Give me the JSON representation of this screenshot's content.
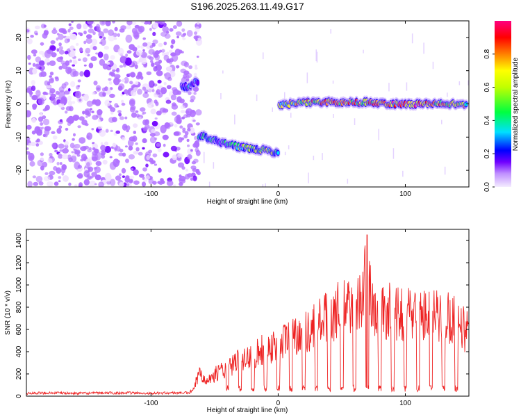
{
  "title": "S196.2025.263.11.49.G17",
  "chart_data": [
    {
      "type": "heatmap",
      "xlabel": "Height of straight line (km)",
      "ylabel": "Frequency (Hz)",
      "xlim": [
        -198,
        150
      ],
      "ylim": [
        -25,
        25
      ],
      "xticks": [
        -100,
        0,
        100
      ],
      "yticks": [
        -20,
        -10,
        0,
        10,
        20
      ],
      "colorbar": {
        "label": "Normalized spectral amplitude",
        "range": [
          0,
          1
        ],
        "ticks": [
          0.0,
          0.2,
          0.4,
          0.6,
          0.8
        ],
        "tick_labels": [
          "0.0",
          "0.2",
          "0.4",
          "0.6",
          "0.8"
        ],
        "colormap": [
          "#f0e0ff",
          "#b070ff",
          "#7000ff",
          "#0000ff",
          "#00e0ff",
          "#00ff40",
          "#c0ff00",
          "#ffff00",
          "#ff8000",
          "#ff0000",
          "#ff0080"
        ]
      },
      "ridge": [
        {
          "x": -76,
          "freq": 5.5,
          "amplitude": 0.25
        },
        {
          "x": -70,
          "freq": 5.0,
          "amplitude": 0.3
        },
        {
          "x": -65,
          "freq": 6.5,
          "amplitude": 0.25
        },
        {
          "x": -60,
          "freq": -9.5,
          "amplitude": 0.35
        },
        {
          "x": -50,
          "freq": -11.0,
          "amplitude": 0.3
        },
        {
          "x": -40,
          "freq": -12.0,
          "amplitude": 0.35
        },
        {
          "x": -30,
          "freq": -13.0,
          "amplitude": 0.4
        },
        {
          "x": -20,
          "freq": -13.5,
          "amplitude": 0.45
        },
        {
          "x": -10,
          "freq": -14.0,
          "amplitude": 0.5
        },
        {
          "x": -2,
          "freq": -14.5,
          "amplitude": 0.45
        },
        {
          "x": 2,
          "freq": -0.5,
          "amplitude": 0.5
        },
        {
          "x": 15,
          "freq": 0.5,
          "amplitude": 0.6
        },
        {
          "x": 30,
          "freq": 0.5,
          "amplitude": 0.7
        },
        {
          "x": 50,
          "freq": 0.5,
          "amplitude": 0.75
        },
        {
          "x": 70,
          "freq": 0.5,
          "amplitude": 0.7
        },
        {
          "x": 90,
          "freq": 0.0,
          "amplitude": 0.75
        },
        {
          "x": 110,
          "freq": 0.0,
          "amplitude": 0.8
        },
        {
          "x": 130,
          "freq": 0.0,
          "amplitude": 0.7
        },
        {
          "x": 148,
          "freq": 0.0,
          "amplitude": 0.6
        }
      ]
    },
    {
      "type": "line",
      "xlabel": "Height of straight line (km)",
      "ylabel": "SNR (10 * v/v)",
      "xlim": [
        -198,
        150
      ],
      "ylim": [
        0,
        1500
      ],
      "xticks": [
        -100,
        0,
        100
      ],
      "yticks": [
        0,
        200,
        400,
        600,
        800,
        1000,
        1200,
        1400
      ],
      "color": "#ee2222",
      "series": [
        {
          "name": "SNR",
          "x": [
            -198,
            -180,
            -160,
            -140,
            -120,
            -100,
            -90,
            -80,
            -70,
            -66,
            -62,
            -58,
            -54,
            -50,
            -46,
            -42,
            -38,
            -34,
            -30,
            -26,
            -22,
            -18,
            -14,
            -10,
            -6,
            -2,
            2,
            6,
            10,
            14,
            18,
            22,
            26,
            30,
            34,
            38,
            42,
            46,
            50,
            54,
            58,
            62,
            66,
            70,
            74,
            78,
            82,
            86,
            90,
            94,
            98,
            102,
            106,
            110,
            114,
            118,
            122,
            126,
            130,
            134,
            138,
            142,
            146,
            150
          ],
          "values": [
            25,
            30,
            25,
            28,
            30,
            25,
            28,
            30,
            30,
            60,
            250,
            200,
            180,
            220,
            280,
            260,
            300,
            350,
            400,
            380,
            420,
            450,
            480,
            500,
            520,
            550,
            560,
            600,
            620,
            650,
            700,
            680,
            720,
            750,
            800,
            820,
            850,
            900,
            880,
            950,
            920,
            1000,
            980,
            1450,
            900,
            850,
            880,
            900,
            870,
            850,
            880,
            900,
            860,
            880,
            850,
            870,
            840,
            860,
            820,
            850,
            830,
            800,
            700,
            720
          ]
        }
      ],
      "dips": [
        -40,
        -30,
        -20,
        -10,
        0,
        10,
        20,
        30,
        40,
        50,
        60,
        70,
        80,
        90,
        100,
        110,
        120,
        130,
        140
      ]
    }
  ]
}
